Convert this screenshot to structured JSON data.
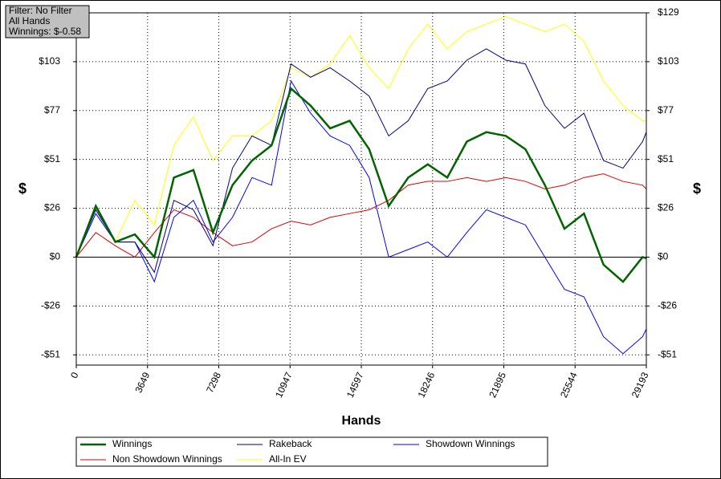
{
  "filter_box": [
    "Filter: No Filter",
    "All Hands",
    "Winnings: $-0.58"
  ],
  "chart_data": {
    "type": "line",
    "xlabel": "Hands",
    "ylabel": "$",
    "y2label": "$",
    "grid": true,
    "xlim": [
      0,
      29193
    ],
    "ylim": [
      -57,
      129
    ],
    "xticks": [
      0,
      3649,
      7298,
      10947,
      14597,
      18246,
      21895,
      25544,
      29193
    ],
    "yticks": [
      {
        "value": -51.6,
        "label": "-$51"
      },
      {
        "value": -25.8,
        "label": "-$26"
      },
      {
        "value": 0,
        "label": "$0"
      },
      {
        "value": 25.8,
        "label": "$26"
      },
      {
        "value": 51.6,
        "label": "$51"
      },
      {
        "value": 77.4,
        "label": "$77"
      },
      {
        "value": 103.2,
        "label": "$103"
      },
      {
        "value": 129,
        "label": "$129"
      }
    ],
    "x": [
      0,
      1000,
      2000,
      3000,
      4000,
      5000,
      6000,
      7000,
      8000,
      9000,
      10000,
      11000,
      12000,
      13000,
      14000,
      15000,
      16000,
      17000,
      18000,
      19000,
      20000,
      21000,
      22000,
      23000,
      24000,
      25000,
      26000,
      27000,
      28000,
      29000,
      29193
    ],
    "series": [
      {
        "name": "Winnings",
        "color": "#006400",
        "width": 2.5,
        "values": [
          0,
          27,
          8,
          12,
          0,
          42,
          46,
          13,
          38,
          51,
          59,
          89,
          80,
          68,
          72,
          57,
          27,
          42,
          49,
          42,
          61,
          66,
          64,
          57,
          38,
          15,
          23,
          -4,
          -13,
          0,
          -0.58
        ]
      },
      {
        "name": "Rakeback",
        "color": "#000080",
        "width": 1,
        "values": [
          0,
          25,
          8,
          8,
          -8,
          30,
          25,
          6,
          47,
          64,
          59,
          102,
          95,
          100,
          93,
          85,
          64,
          72,
          89,
          93,
          104,
          110,
          104,
          102,
          80,
          68,
          76,
          51,
          47,
          61,
          66
        ]
      },
      {
        "name": "Showdown Winnings",
        "color": "#0000ff",
        "width": 1,
        "values": [
          0,
          23,
          8,
          8,
          -13,
          21,
          30,
          8,
          21,
          42,
          38,
          93,
          76,
          64,
          59,
          42,
          0,
          4,
          8,
          0,
          13,
          25,
          21,
          17,
          0,
          -17,
          -21,
          -42,
          -51,
          -42,
          -38
        ]
      },
      {
        "name": "Non Showdown Winnings",
        "color": "#e00000",
        "width": 1,
        "values": [
          0,
          13,
          6,
          0,
          13,
          25,
          21,
          13,
          6,
          8,
          15,
          19,
          17,
          21,
          23,
          25,
          30,
          38,
          40,
          40,
          42,
          40,
          42,
          40,
          36,
          38,
          42,
          44,
          40,
          38,
          36
        ]
      },
      {
        "name": "All-In EV",
        "color": "#ffff00",
        "width": 1,
        "values": [
          0,
          25,
          8,
          30,
          17,
          59,
          74,
          51,
          64,
          64,
          72,
          100,
          95,
          102,
          117,
          100,
          89,
          110,
          123,
          110,
          119,
          123,
          127,
          123,
          119,
          123,
          114,
          93,
          80,
          72,
          72
        ]
      }
    ]
  }
}
